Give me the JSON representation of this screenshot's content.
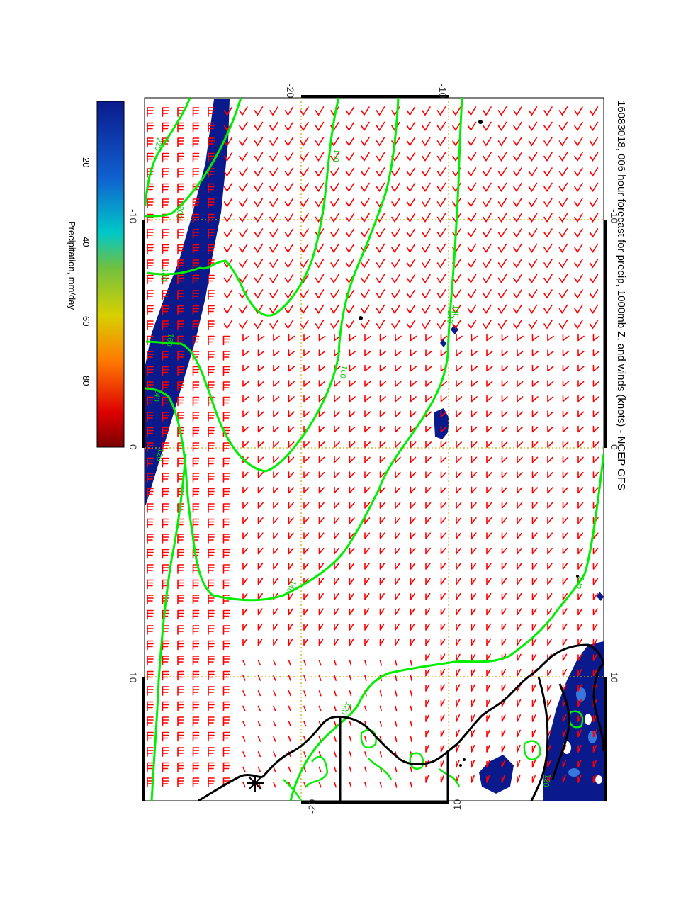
{
  "map": {
    "title": "16083018, 006 hour forecast for precip, 1000mb Z, and winds (knots) - NCEP GFS",
    "lon_ticks_top": [
      "-20",
      "-10"
    ],
    "lon_ticks_bottom": [
      "-20",
      "-10"
    ],
    "lat_ticks_right": [
      "-10",
      "0",
      "10"
    ],
    "lat_ticks_left": [
      "-10",
      "0",
      "10"
    ],
    "contour_labels": [
      "220",
      "200",
      "180",
      "160",
      "140",
      "120",
      "180",
      "160",
      "140",
      "120",
      "140",
      "120",
      "140",
      "120"
    ],
    "colors": {
      "wind_barbs": "#ff0000",
      "contours": "#00ee00",
      "gridlines": "#ccaa00",
      "precip_fill": "#0a1a8c",
      "coastline": "#000000"
    }
  },
  "colorbar": {
    "label": "Precipitation, mm/day",
    "ticks": [
      "20",
      "40",
      "60",
      "80"
    ],
    "tick_values": [
      20,
      40,
      60,
      80
    ],
    "range": [
      0,
      100
    ],
    "stops": [
      "#7a0000",
      "#ee0000",
      "#ff7700",
      "#d8d000",
      "#70c040",
      "#00c8c8",
      "#1060d0",
      "#0a1a8c"
    ]
  }
}
